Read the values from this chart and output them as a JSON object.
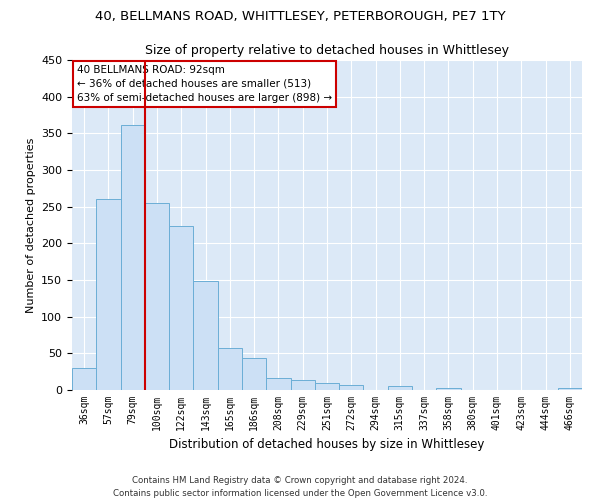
{
  "title1": "40, BELLMANS ROAD, WHITTLESEY, PETERBOROUGH, PE7 1TY",
  "title2": "Size of property relative to detached houses in Whittlesey",
  "xlabel": "Distribution of detached houses by size in Whittlesey",
  "ylabel": "Number of detached properties",
  "categories": [
    "36sqm",
    "57sqm",
    "79sqm",
    "100sqm",
    "122sqm",
    "143sqm",
    "165sqm",
    "186sqm",
    "208sqm",
    "229sqm",
    "251sqm",
    "272sqm",
    "294sqm",
    "315sqm",
    "337sqm",
    "358sqm",
    "380sqm",
    "401sqm",
    "423sqm",
    "444sqm",
    "466sqm"
  ],
  "values": [
    30,
    260,
    362,
    255,
    223,
    148,
    57,
    44,
    16,
    13,
    10,
    7,
    0,
    5,
    0,
    3,
    0,
    0,
    0,
    0,
    3
  ],
  "bar_color": "#cce0f5",
  "bar_edge_color": "#6baed6",
  "vline_x": 2.5,
  "vline_color": "#cc0000",
  "annotation_text": "40 BELLMANS ROAD: 92sqm\n← 36% of detached houses are smaller (513)\n63% of semi-detached houses are larger (898) →",
  "annotation_box_color": "#ffffff",
  "annotation_box_edge": "#cc0000",
  "ylim": [
    0,
    450
  ],
  "yticks": [
    0,
    50,
    100,
    150,
    200,
    250,
    300,
    350,
    400,
    450
  ],
  "footer1": "Contains HM Land Registry data © Crown copyright and database right 2024.",
  "footer2": "Contains public sector information licensed under the Open Government Licence v3.0.",
  "bg_color": "#dce9f7",
  "fig_bg_color": "#ffffff",
  "title1_fontsize": 9.5,
  "title2_fontsize": 9
}
